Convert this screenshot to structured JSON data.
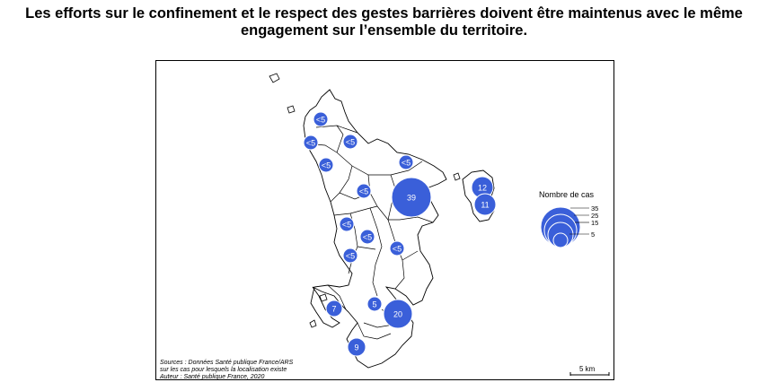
{
  "headline": {
    "line1": "Les efforts sur le confinement et le respect des gestes barrières doivent être maintenus avec le même",
    "line2": "engagement sur l’ensemble du territoire."
  },
  "map": {
    "colors": {
      "bubble_fill": "#3a5fd9",
      "bubble_stroke": "#ffffff",
      "outline": "#000000"
    },
    "bubbles": [
      {
        "label": "<5"
      },
      {
        "label": "<5"
      },
      {
        "label": "<5"
      },
      {
        "label": "<5"
      },
      {
        "label": "<5"
      },
      {
        "label": "<5"
      },
      {
        "label": "39"
      },
      {
        "label": "12"
      },
      {
        "label": "11"
      },
      {
        "label": "<5"
      },
      {
        "label": "<5"
      },
      {
        "label": "<5"
      },
      {
        "label": "<5"
      },
      {
        "label": "5"
      },
      {
        "label": "7"
      },
      {
        "label": "20"
      },
      {
        "label": "9"
      }
    ]
  },
  "legend": {
    "title": "Nombre de cas",
    "ticks": [
      "35",
      "25",
      "15",
      "5"
    ]
  },
  "sources": {
    "line1": "Sources : Données Santé publique France/ARS",
    "line2": "sur les cas pour lesquels la localisation existe",
    "line3": "Auteur : Santé publique France, 2020"
  },
  "scale_label": "5 km"
}
